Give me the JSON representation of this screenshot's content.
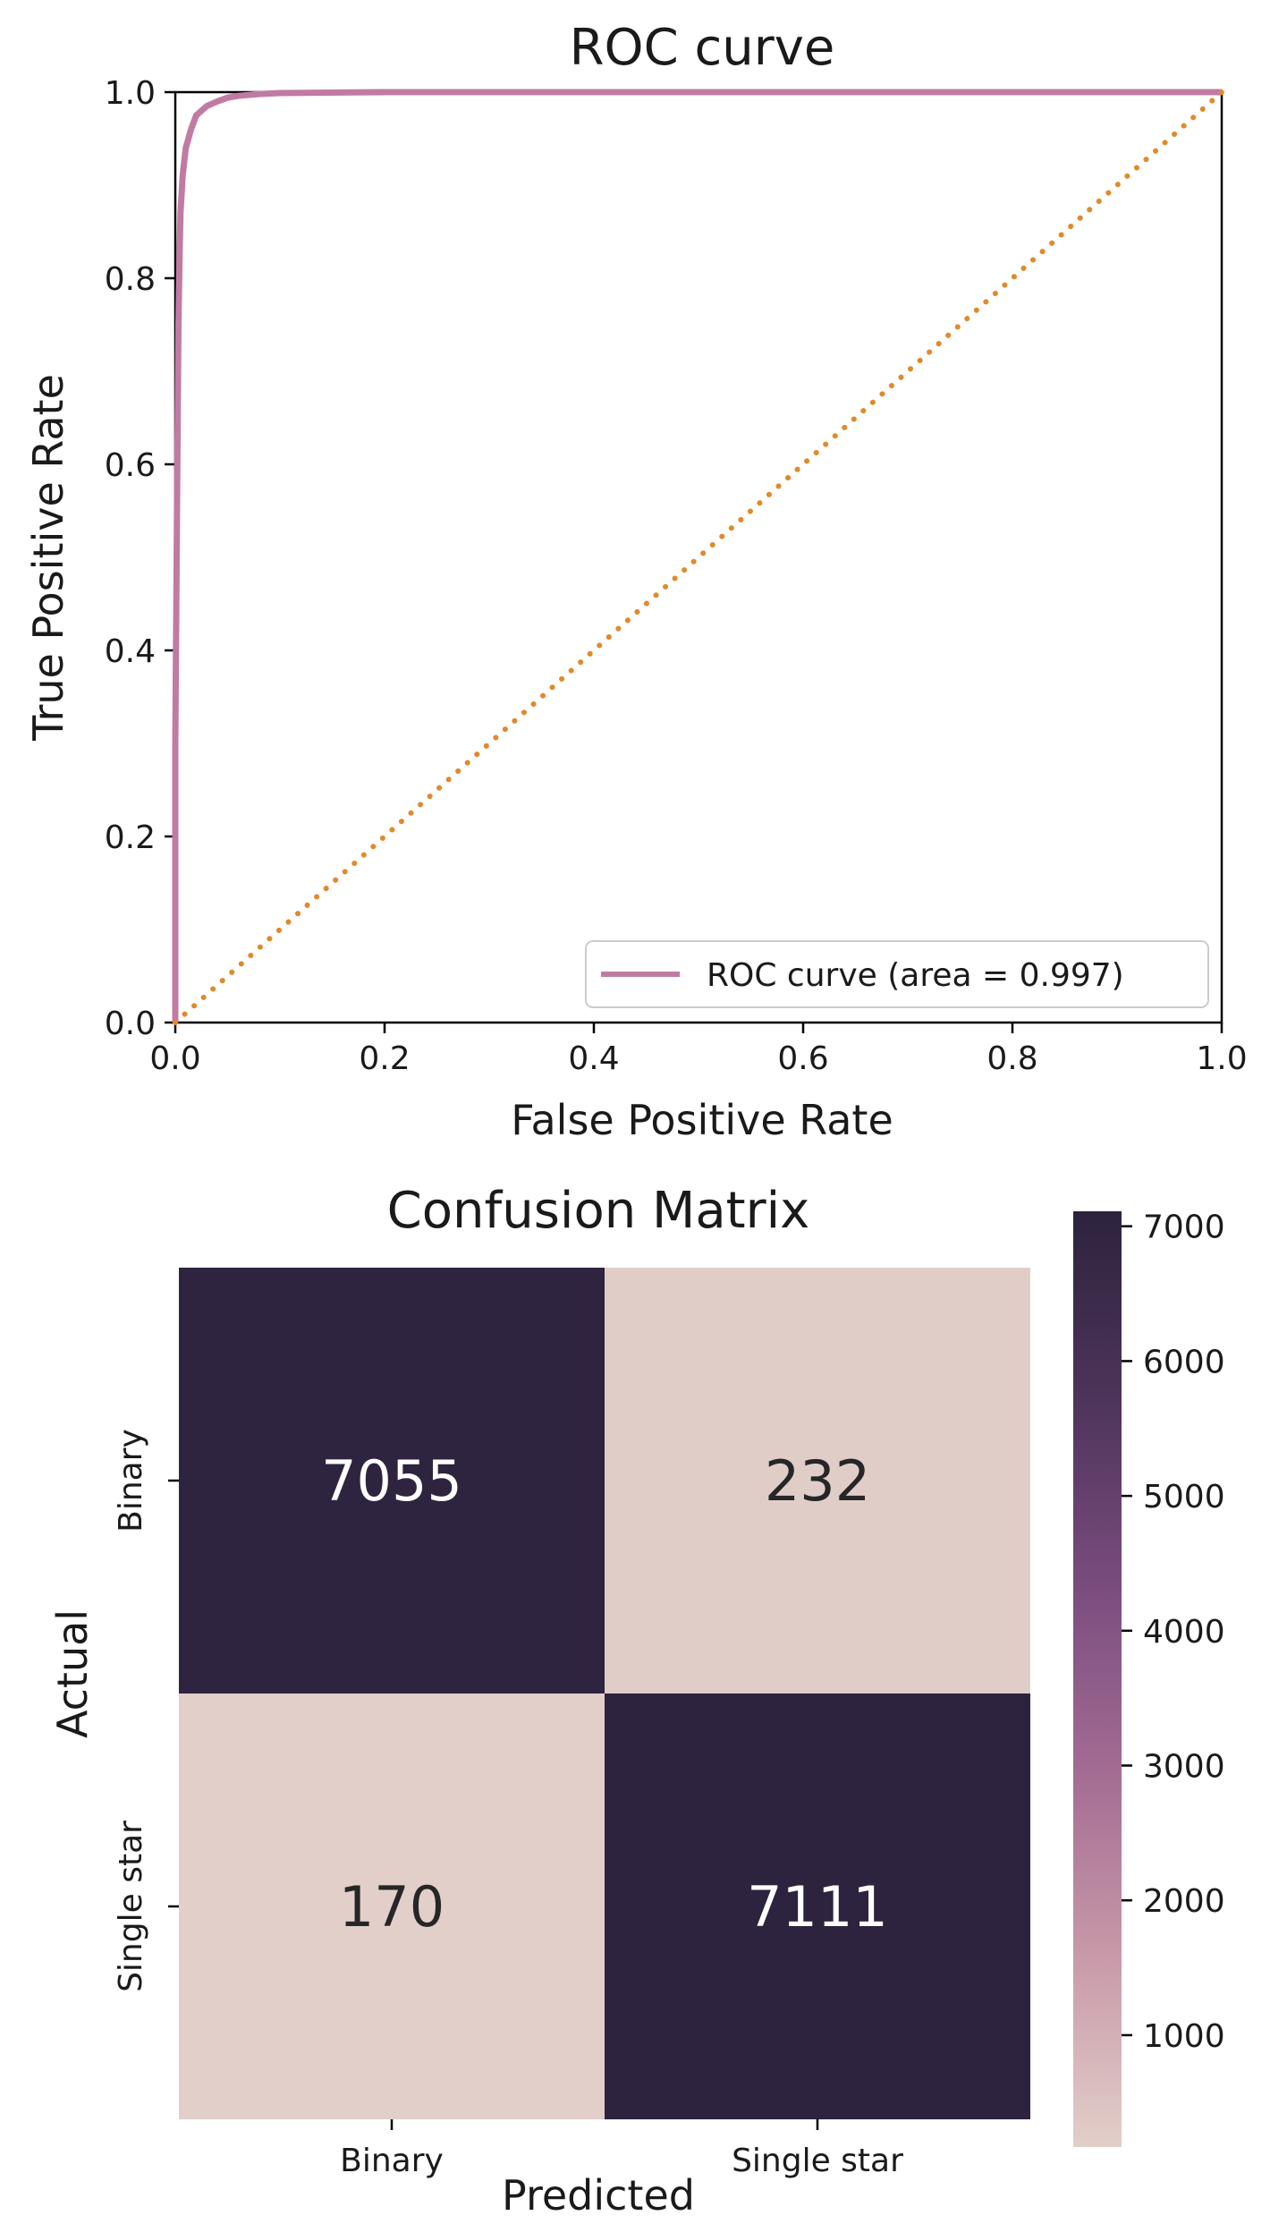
{
  "chart_data": [
    {
      "type": "line",
      "title": "ROC curve",
      "xlabel": "False Positive Rate",
      "ylabel": "True Positive Rate",
      "xlim": [
        0.0,
        1.0
      ],
      "ylim": [
        0.0,
        1.0
      ],
      "x_ticks": [
        "0.0",
        "0.2",
        "0.4",
        "0.6",
        "0.8",
        "1.0"
      ],
      "y_ticks": [
        "0.0",
        "0.2",
        "0.4",
        "0.6",
        "0.8",
        "1.0"
      ],
      "grid": false,
      "legend_position": "lower-right",
      "series": [
        {
          "name": "ROC curve (area = 0.997)",
          "style": "solid",
          "color": "#c17ba3",
          "x": [
            0.0,
            0.0,
            0.002,
            0.003,
            0.004,
            0.005,
            0.007,
            0.01,
            0.015,
            0.02,
            0.03,
            0.04,
            0.05,
            0.06,
            0.08,
            0.1,
            0.15,
            0.2,
            0.4,
            0.6,
            0.8,
            1.0
          ],
          "y": [
            0.0,
            0.3,
            0.6,
            0.75,
            0.82,
            0.87,
            0.91,
            0.94,
            0.96,
            0.975,
            0.985,
            0.99,
            0.994,
            0.996,
            0.998,
            0.999,
            0.9995,
            1.0,
            1.0,
            1.0,
            1.0,
            1.0
          ]
        },
        {
          "style": "dotted",
          "color": "#e08a2c",
          "x": [
            0.0,
            1.0
          ],
          "y": [
            0.0,
            1.0
          ]
        }
      ]
    },
    {
      "type": "heatmap",
      "title": "Confusion Matrix",
      "xlabel": "Predicted",
      "ylabel": "Actual",
      "x_categories": [
        "Binary",
        "Single star"
      ],
      "y_categories": [
        "Binary",
        "Single star"
      ],
      "values": [
        [
          7055,
          232
        ],
        [
          170,
          7111
        ]
      ],
      "colorbar": {
        "min": 170,
        "max": 7111,
        "ticks": [
          "1000",
          "2000",
          "3000",
          "4000",
          "5000",
          "6000",
          "7000"
        ],
        "colors": [
          "#e2cfc9",
          "#c99aa9",
          "#a36c93",
          "#7a4c7e",
          "#4d3459",
          "#2d233e"
        ]
      }
    }
  ]
}
